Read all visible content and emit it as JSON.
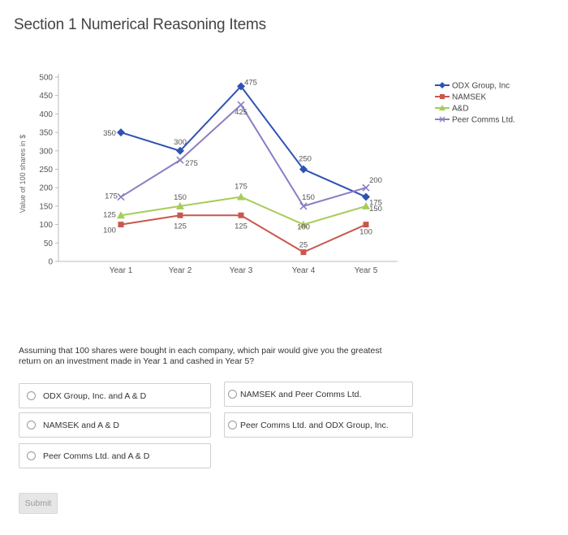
{
  "section_title": "Section 1 Numerical Reasoning Items",
  "question_text": "Assuming that 100 shares were bought in each company, which pair would give you the greatest return on an investment made in Year 1 and cashed in Year 5?",
  "options": [
    {
      "label": "ODX Group, Inc. and A & D"
    },
    {
      "label": "NAMSEK and Peer Comms Ltd."
    },
    {
      "label": "NAMSEK and A & D"
    },
    {
      "label": "Peer Comms Ltd. and ODX Group, Inc."
    },
    {
      "label": "Peer Comms Ltd. and A & D"
    }
  ],
  "submit_label": "Submit",
  "chart_data": {
    "type": "line",
    "title": "",
    "ylabel": "Value of 100 shares in $",
    "xlabel": "",
    "categories": [
      "Year 1",
      "Year 2",
      "Year 3",
      "Year 4",
      "Year 5"
    ],
    "ylim": [
      0,
      500
    ],
    "yticks": [
      "500",
      "450",
      "400",
      "350",
      "300",
      "250",
      "200",
      "150",
      "100",
      "50",
      "0"
    ],
    "grid": false,
    "legend_position": "top-right",
    "series": [
      {
        "name": "ODX Group, Inc",
        "color": "#2f52b4",
        "marker": "diamond",
        "values": [
          350,
          300,
          475,
          250,
          175
        ],
        "labels": [
          "350",
          "300",
          "475",
          "250",
          "175"
        ]
      },
      {
        "name": "NAMSEK",
        "color": "#c9574f",
        "marker": "square",
        "values": [
          100,
          125,
          125,
          25,
          100
        ],
        "labels": [
          "100",
          "125",
          "125",
          "25",
          "100"
        ]
      },
      {
        "name": "A&D",
        "color": "#a6cd5a",
        "marker": "triangle",
        "values": [
          125,
          150,
          175,
          100,
          150
        ],
        "labels": [
          "125",
          "150",
          "175",
          "100",
          "150"
        ]
      },
      {
        "name": "Peer Comms Ltd.",
        "color": "#8c7dc4",
        "marker": "x",
        "values": [
          175,
          275,
          425,
          150,
          200
        ],
        "labels": [
          "175",
          "275",
          "425",
          "150",
          "200"
        ]
      }
    ]
  }
}
